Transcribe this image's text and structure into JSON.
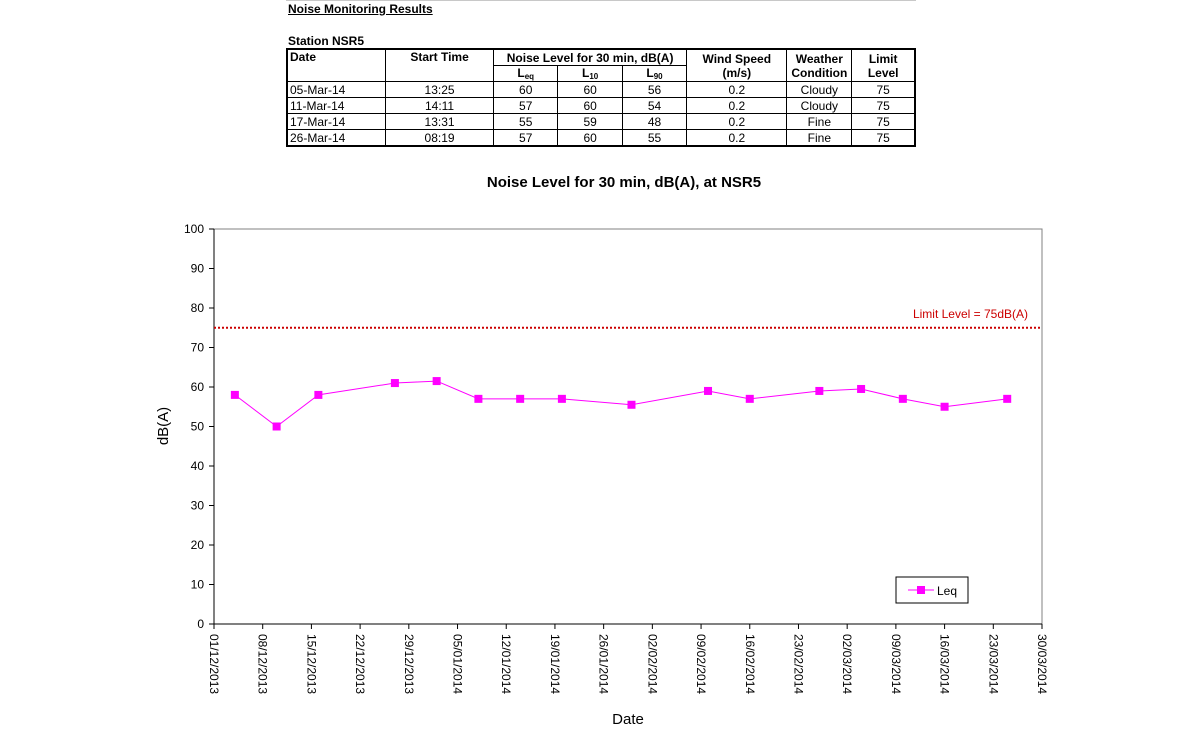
{
  "heading": "Noise Monitoring Results",
  "station": "Station NSR5",
  "table": {
    "headers": {
      "date": "Date",
      "start_time": "Start Time",
      "noise_group": "Noise Level for 30 min, dB(A)",
      "leq_main": "L",
      "leq_sub": "eq",
      "l10_main": "L",
      "l10_sub": "10",
      "l90_main": "L",
      "l90_sub": "90",
      "wind_speed": "Wind Speed",
      "wind_unit": "(m/s)",
      "weather": "Weather",
      "weather2": "Condition",
      "limit": "Limit",
      "limit2": "Level"
    },
    "rows": [
      {
        "date": "05-Mar-14",
        "start": "13:25",
        "leq": "60",
        "l10": "60",
        "l90": "56",
        "wind": "0.2",
        "weather": "Cloudy",
        "limit": "75"
      },
      {
        "date": "11-Mar-14",
        "start": "14:11",
        "leq": "57",
        "l10": "60",
        "l90": "54",
        "wind": "0.2",
        "weather": "Cloudy",
        "limit": "75"
      },
      {
        "date": "17-Mar-14",
        "start": "13:31",
        "leq": "55",
        "l10": "59",
        "l90": "48",
        "wind": "0.2",
        "weather": "Fine",
        "limit": "75"
      },
      {
        "date": "26-Mar-14",
        "start": "08:19",
        "leq": "57",
        "l10": "60",
        "l90": "55",
        "wind": "0.2",
        "weather": "Fine",
        "limit": "75"
      }
    ]
  },
  "chart_data": {
    "type": "line",
    "title": "Noise Level for 30 min, dB(A), at NSR5",
    "xlabel": "Date",
    "ylabel": "dB(A)",
    "ylim": [
      0,
      100
    ],
    "xlim": [
      "2013-12-01",
      "2014-03-30"
    ],
    "y_ticks": [
      "0",
      "10",
      "20",
      "30",
      "40",
      "50",
      "60",
      "70",
      "80",
      "90",
      "100"
    ],
    "x_ticks": [
      "01/12/2013",
      "08/12/2013",
      "15/12/2013",
      "22/12/2013",
      "29/12/2013",
      "05/01/2014",
      "12/01/2014",
      "19/01/2014",
      "26/01/2014",
      "02/02/2014",
      "09/02/2014",
      "16/02/2014",
      "23/02/2014",
      "02/03/2014",
      "09/03/2014",
      "16/03/2014",
      "23/03/2014",
      "30/03/2014"
    ],
    "grid": false,
    "legend": "bottom-right",
    "series": [
      {
        "name": "Leq",
        "color": "#ff00ff",
        "marker": "square",
        "x": [
          "2013-12-04",
          "2013-12-10",
          "2013-12-16",
          "2013-12-27",
          "2014-01-02",
          "2014-01-08",
          "2014-01-14",
          "2014-01-20",
          "2014-01-30",
          "2014-02-10",
          "2014-02-16",
          "2014-02-26",
          "2014-03-04",
          "2014-03-10",
          "2014-03-16",
          "2014-03-25"
        ],
        "y": [
          58,
          50,
          58,
          61,
          61.5,
          57,
          57,
          57,
          55.5,
          59,
          57,
          59,
          59.5,
          57,
          55,
          57
        ]
      }
    ],
    "reference_line": {
      "value": 75,
      "label": "Limit Level = 75dB(A)",
      "color": "#cc0000",
      "style": "dotted"
    }
  }
}
